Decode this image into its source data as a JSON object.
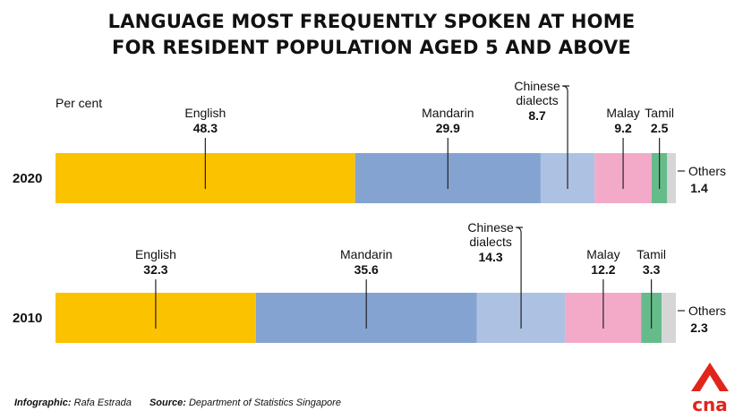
{
  "title_lines": [
    "LANGUAGE MOST FREQUENTLY SPOKEN AT HOME",
    "FOR RESIDENT POPULATION AGED 5 AND ABOVE"
  ],
  "unit_label": "Per cent",
  "chart_data": {
    "type": "bar",
    "orientation": "horizontal",
    "stacked": true,
    "categories": [
      "2020",
      "2010"
    ],
    "series": [
      {
        "name": "English",
        "values": [
          48.3,
          32.3
        ],
        "color": "#fbc200"
      },
      {
        "name": "Mandarin",
        "values": [
          29.9,
          35.6
        ],
        "color": "#84a3d1"
      },
      {
        "name": "Chinese dialects",
        "values": [
          8.7,
          14.3
        ],
        "color": "#adc1e3"
      },
      {
        "name": "Malay",
        "values": [
          9.2,
          12.2
        ],
        "color": "#f3aac8"
      },
      {
        "name": "Tamil",
        "values": [
          2.5,
          3.3
        ],
        "color": "#66bb8a"
      },
      {
        "name": "Others",
        "values": [
          1.4,
          2.3
        ],
        "color": "#d6d6d6"
      }
    ],
    "unit": "Per cent",
    "grid": false,
    "legend": "inline labels"
  },
  "footer": {
    "infographic_label": "Infographic:",
    "infographic_value": "Rafa Estrada",
    "source_label": "Source:",
    "source_value": "Department of Statistics Singapore"
  },
  "logo": {
    "text": "cna",
    "color": "#e1251b"
  }
}
